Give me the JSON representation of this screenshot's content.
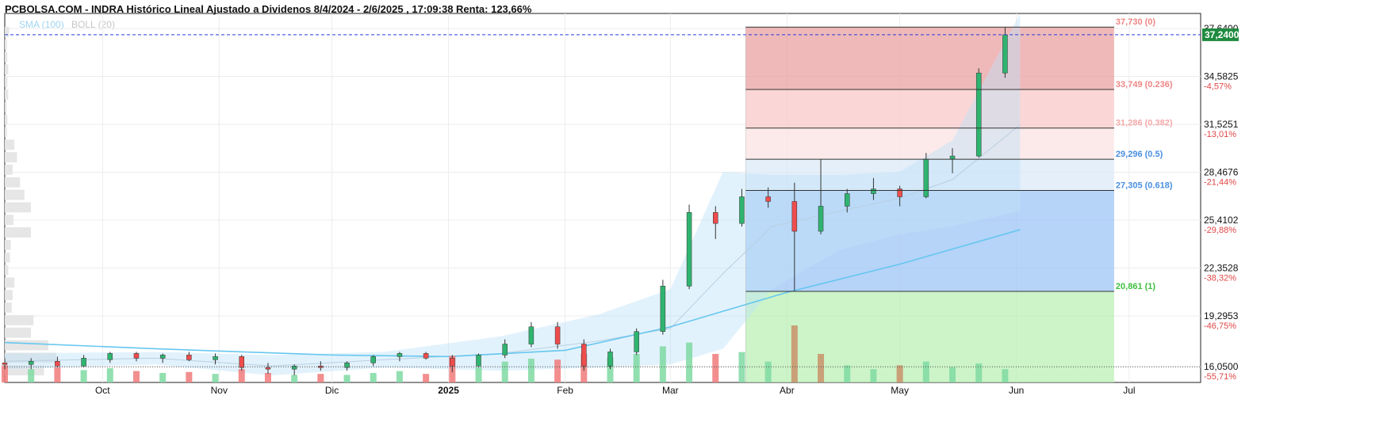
{
  "header": {
    "title": "PCBOLSA.COM - INDRA Histórico Lineal Ajustado a Dividenos 8/4/2024 - 2/6/2025 , 17:09:38 Renta: 123,66%",
    "indicator_sma": "SMA (100)",
    "indicator_boll": "BOLL (20)"
  },
  "colors": {
    "up": "#2fb470",
    "down": "#ef4c4c",
    "vol_up": "#7fd9a2",
    "vol_down": "#f07a7a",
    "vol_brown": "#c9906a",
    "sma": "#66c7ef",
    "bollinger_fill": "#bfe3f8",
    "bollinger_mid": "#b9cfe0",
    "price_line": "#2b3bd9",
    "price_tag": "#1f8a3f",
    "fib_red": "#e9a2a2",
    "fib_pink": "#f8c8c8",
    "fib_light": "#fbe3e3",
    "fib_lightblue": "#dbe9f8",
    "fib_blue": "#9ec4f6",
    "fib_green": "#b6f0b0"
  },
  "chart_data": {
    "type": "candlestick",
    "title": "PCBOLSA.COM - INDRA Histórico Lineal Ajustado a Dividenos 8/4/2024 - 2/6/2025 , 17:09:38 Renta: 123,66%",
    "y_axis": {
      "ticks": [
        {
          "value": 37.64,
          "label": "37,6400",
          "pct": ""
        },
        {
          "value": 34.5825,
          "label": "34,5825",
          "pct": "-4,57%"
        },
        {
          "value": 31.5251,
          "label": "31,5251",
          "pct": "-13,01%"
        },
        {
          "value": 28.4676,
          "label": "28,4676",
          "pct": "-21,44%"
        },
        {
          "value": 25.4102,
          "label": "25,4102",
          "pct": "-29,88%"
        },
        {
          "value": 22.3528,
          "label": "22,3528",
          "pct": "-38,32%"
        },
        {
          "value": 19.2953,
          "label": "19,2953",
          "pct": "-46,75%"
        },
        {
          "value": 16.05,
          "label": "16,0500",
          "pct": "-55,71%"
        }
      ],
      "range": [
        15.05,
        38.6
      ]
    },
    "x_axis": {
      "labels": [
        {
          "label": "Oct",
          "date": "2024-10-01",
          "bold": false
        },
        {
          "label": "Nov",
          "date": "2024-11-01",
          "bold": false
        },
        {
          "label": "Dic",
          "date": "2024-12-01",
          "bold": false
        },
        {
          "label": "2025",
          "date": "2025-01-01",
          "bold": true
        },
        {
          "label": "Feb",
          "date": "2025-02-01",
          "bold": false
        },
        {
          "label": "Mar",
          "date": "2025-03-01",
          "bold": false
        },
        {
          "label": "Abr",
          "date": "2025-04-01",
          "bold": false
        },
        {
          "label": "May",
          "date": "2025-05-01",
          "bold": false
        },
        {
          "label": "Jun",
          "date": "2025-06-01",
          "bold": false
        },
        {
          "label": "Jul",
          "date": "2025-07-01",
          "bold": false
        }
      ],
      "range": [
        "2024-09-05",
        "2025-07-20"
      ]
    },
    "current_price": {
      "value": 37.24,
      "label": "37,2400"
    },
    "reference_line": {
      "value": 16.05
    },
    "fibonacci": {
      "start_date": "2025-03-21",
      "end_date": "2025-06-27",
      "levels": [
        {
          "value": 37.73,
          "label": "37,730 (0)",
          "color": "#f08585"
        },
        {
          "value": 33.749,
          "label": "33,749 (0.236)",
          "color": "#f08585"
        },
        {
          "value": 31.286,
          "label": "31,286 (0.382)",
          "color": "#f4a9a9"
        },
        {
          "value": 29.296,
          "label": "29,296 (0.5)",
          "color": "#4a8fe0"
        },
        {
          "value": 27.305,
          "label": "27,305 (0.618)",
          "color": "#4a8fe0"
        },
        {
          "value": 20.861,
          "label": "20,861 (1)",
          "color": "#3fbf3f"
        }
      ]
    },
    "candles": [
      {
        "d": "2024-09-05",
        "o": 16.3,
        "h": 16.6,
        "l": 15.9,
        "c": 16.2
      },
      {
        "d": "2024-09-12",
        "o": 16.2,
        "h": 16.6,
        "l": 15.9,
        "c": 16.4
      },
      {
        "d": "2024-09-19",
        "o": 16.4,
        "h": 16.7,
        "l": 16.0,
        "c": 16.1
      },
      {
        "d": "2024-09-26",
        "o": 16.1,
        "h": 16.8,
        "l": 16.0,
        "c": 16.6
      },
      {
        "d": "2024-10-03",
        "o": 16.5,
        "h": 17.0,
        "l": 16.3,
        "c": 16.9
      },
      {
        "d": "2024-10-10",
        "o": 16.9,
        "h": 17.0,
        "l": 16.4,
        "c": 16.6
      },
      {
        "d": "2024-10-17",
        "o": 16.6,
        "h": 16.9,
        "l": 16.3,
        "c": 16.8
      },
      {
        "d": "2024-10-24",
        "o": 16.8,
        "h": 17.0,
        "l": 16.4,
        "c": 16.5
      },
      {
        "d": "2024-10-31",
        "o": 16.5,
        "h": 16.9,
        "l": 16.2,
        "c": 16.7
      },
      {
        "d": "2024-11-07",
        "o": 16.7,
        "h": 16.8,
        "l": 15.8,
        "c": 16.0
      },
      {
        "d": "2024-11-14",
        "o": 16.0,
        "h": 16.3,
        "l": 15.6,
        "c": 15.9
      },
      {
        "d": "2024-11-21",
        "o": 15.9,
        "h": 16.2,
        "l": 15.5,
        "c": 16.1
      },
      {
        "d": "2024-11-28",
        "o": 16.1,
        "h": 16.4,
        "l": 15.8,
        "c": 16.0
      },
      {
        "d": "2024-12-05",
        "o": 16.0,
        "h": 16.4,
        "l": 15.8,
        "c": 16.3
      },
      {
        "d": "2024-12-12",
        "o": 16.3,
        "h": 16.8,
        "l": 16.1,
        "c": 16.7
      },
      {
        "d": "2024-12-19",
        "o": 16.7,
        "h": 17.0,
        "l": 16.4,
        "c": 16.9
      },
      {
        "d": "2024-12-26",
        "o": 16.9,
        "h": 17.0,
        "l": 16.5,
        "c": 16.6
      },
      {
        "d": "2025-01-02",
        "o": 16.6,
        "h": 16.8,
        "l": 15.7,
        "c": 16.1
      },
      {
        "d": "2025-01-09",
        "o": 16.1,
        "h": 16.9,
        "l": 16.0,
        "c": 16.8
      },
      {
        "d": "2025-01-16",
        "o": 16.8,
        "h": 17.8,
        "l": 16.6,
        "c": 17.5
      },
      {
        "d": "2025-01-23",
        "o": 17.5,
        "h": 18.9,
        "l": 17.3,
        "c": 18.6
      },
      {
        "d": "2025-01-30",
        "o": 18.6,
        "h": 18.9,
        "l": 17.2,
        "c": 17.5
      },
      {
        "d": "2025-02-06",
        "o": 17.5,
        "h": 17.8,
        "l": 15.8,
        "c": 16.1
      },
      {
        "d": "2025-02-13",
        "o": 16.1,
        "h": 17.2,
        "l": 15.9,
        "c": 17.0
      },
      {
        "d": "2025-02-20",
        "o": 17.0,
        "h": 18.5,
        "l": 16.8,
        "c": 18.3
      },
      {
        "d": "2025-02-27",
        "o": 18.3,
        "h": 21.6,
        "l": 18.1,
        "c": 21.2
      },
      {
        "d": "2025-03-06",
        "o": 21.2,
        "h": 26.4,
        "l": 21.0,
        "c": 25.9
      },
      {
        "d": "2025-03-13",
        "o": 25.9,
        "h": 26.3,
        "l": 24.2,
        "c": 25.2
      },
      {
        "d": "2025-03-20",
        "o": 25.2,
        "h": 27.4,
        "l": 25.0,
        "c": 26.9
      },
      {
        "d": "2025-03-27",
        "o": 26.9,
        "h": 27.5,
        "l": 26.2,
        "c": 26.6
      },
      {
        "d": "2025-04-03",
        "o": 26.6,
        "h": 27.8,
        "l": 20.9,
        "c": 24.7
      },
      {
        "d": "2025-04-10",
        "o": 24.7,
        "h": 29.3,
        "l": 24.5,
        "c": 26.3
      },
      {
        "d": "2025-04-17",
        "o": 26.3,
        "h": 27.4,
        "l": 25.9,
        "c": 27.1
      },
      {
        "d": "2025-04-24",
        "o": 27.1,
        "h": 28.1,
        "l": 26.7,
        "c": 27.4
      },
      {
        "d": "2025-05-01",
        "o": 27.4,
        "h": 27.6,
        "l": 26.3,
        "c": 26.9
      },
      {
        "d": "2025-05-08",
        "o": 26.9,
        "h": 29.7,
        "l": 26.8,
        "c": 29.3
      },
      {
        "d": "2025-05-15",
        "o": 29.3,
        "h": 30.0,
        "l": 28.4,
        "c": 29.5
      },
      {
        "d": "2025-05-22",
        "o": 29.5,
        "h": 35.1,
        "l": 29.4,
        "c": 34.8
      },
      {
        "d": "2025-05-29",
        "o": 34.8,
        "h": 37.7,
        "l": 34.5,
        "c": 37.24
      }
    ],
    "volume_series": [
      {
        "d": "2024-09-05",
        "v": 18,
        "t": "down"
      },
      {
        "d": "2024-09-12",
        "v": 14,
        "t": "up"
      },
      {
        "d": "2024-09-19",
        "v": 16,
        "t": "down"
      },
      {
        "d": "2024-09-26",
        "v": 13,
        "t": "up"
      },
      {
        "d": "2024-10-03",
        "v": 15,
        "t": "up"
      },
      {
        "d": "2024-10-10",
        "v": 12,
        "t": "down"
      },
      {
        "d": "2024-10-17",
        "v": 10,
        "t": "up"
      },
      {
        "d": "2024-10-24",
        "v": 11,
        "t": "down"
      },
      {
        "d": "2024-10-31",
        "v": 9,
        "t": "up"
      },
      {
        "d": "2024-11-07",
        "v": 14,
        "t": "down"
      },
      {
        "d": "2024-11-14",
        "v": 10,
        "t": "down"
      },
      {
        "d": "2024-11-21",
        "v": 8,
        "t": "up"
      },
      {
        "d": "2024-11-28",
        "v": 9,
        "t": "down"
      },
      {
        "d": "2024-12-05",
        "v": 8,
        "t": "up"
      },
      {
        "d": "2024-12-12",
        "v": 10,
        "t": "up"
      },
      {
        "d": "2024-12-19",
        "v": 12,
        "t": "up"
      },
      {
        "d": "2024-12-26",
        "v": 9,
        "t": "down"
      },
      {
        "d": "2025-01-02",
        "v": 28,
        "t": "down"
      },
      {
        "d": "2025-01-09",
        "v": 16,
        "t": "up"
      },
      {
        "d": "2025-01-16",
        "v": 22,
        "t": "up"
      },
      {
        "d": "2025-01-23",
        "v": 25,
        "t": "up"
      },
      {
        "d": "2025-01-30",
        "v": 24,
        "t": "down"
      },
      {
        "d": "2025-02-06",
        "v": 30,
        "t": "down"
      },
      {
        "d": "2025-02-13",
        "v": 26,
        "t": "up"
      },
      {
        "d": "2025-02-20",
        "v": 30,
        "t": "up"
      },
      {
        "d": "2025-02-27",
        "v": 38,
        "t": "up"
      },
      {
        "d": "2025-03-06",
        "v": 42,
        "t": "up"
      },
      {
        "d": "2025-03-13",
        "v": 30,
        "t": "down"
      },
      {
        "d": "2025-03-20",
        "v": 32,
        "t": "up"
      },
      {
        "d": "2025-03-27",
        "v": 22,
        "t": "up"
      },
      {
        "d": "2025-04-03",
        "v": 60,
        "t": "brown"
      },
      {
        "d": "2025-04-10",
        "v": 30,
        "t": "brown"
      },
      {
        "d": "2025-04-17",
        "v": 18,
        "t": "up"
      },
      {
        "d": "2025-04-24",
        "v": 14,
        "t": "up"
      },
      {
        "d": "2025-05-01",
        "v": 18,
        "t": "brown"
      },
      {
        "d": "2025-05-08",
        "v": 22,
        "t": "up"
      },
      {
        "d": "2025-05-15",
        "v": 16,
        "t": "up"
      },
      {
        "d": "2025-05-22",
        "v": 20,
        "t": "up"
      },
      {
        "d": "2025-05-29",
        "v": 14,
        "t": "up"
      }
    ],
    "sma": [
      {
        "d": "2024-09-05",
        "v": 17.6
      },
      {
        "d": "2024-10-15",
        "v": 17.2
      },
      {
        "d": "2024-12-01",
        "v": 16.8
      },
      {
        "d": "2025-01-01",
        "v": 16.7
      },
      {
        "d": "2025-02-01",
        "v": 17.1
      },
      {
        "d": "2025-03-01",
        "v": 18.6
      },
      {
        "d": "2025-04-01",
        "v": 20.8
      },
      {
        "d": "2025-05-01",
        "v": 22.6
      },
      {
        "d": "2025-06-02",
        "v": 24.8
      }
    ],
    "bollinger": [
      {
        "d": "2024-09-05",
        "u": 16.9,
        "m": 16.4,
        "l": 15.9
      },
      {
        "d": "2024-10-15",
        "u": 17.0,
        "m": 16.6,
        "l": 16.2
      },
      {
        "d": "2024-11-15",
        "u": 16.8,
        "m": 16.1,
        "l": 15.5
      },
      {
        "d": "2024-12-15",
        "u": 17.0,
        "m": 16.5,
        "l": 16.0
      },
      {
        "d": "2025-01-15",
        "u": 18.0,
        "m": 16.9,
        "l": 15.8
      },
      {
        "d": "2025-02-10",
        "u": 19.4,
        "m": 17.7,
        "l": 16.0
      },
      {
        "d": "2025-03-01",
        "u": 21.0,
        "m": 18.5,
        "l": 16.2
      },
      {
        "d": "2025-03-15",
        "u": 28.5,
        "m": 22.0,
        "l": 17.2
      },
      {
        "d": "2025-03-28",
        "u": 28.3,
        "m": 25.0,
        "l": 21.0
      },
      {
        "d": "2025-04-15",
        "u": 28.3,
        "m": 26.0,
        "l": 23.5
      },
      {
        "d": "2025-05-01",
        "u": 28.5,
        "m": 26.8,
        "l": 24.5
      },
      {
        "d": "2025-05-15",
        "u": 30.5,
        "m": 28.0,
        "l": 25.0
      },
      {
        "d": "2025-06-02",
        "u": 38.6,
        "m": 31.5,
        "l": 26.0
      }
    ],
    "volume_profile": [
      {
        "price": 37.4,
        "w": 10
      },
      {
        "price": 36.6,
        "w": 5
      },
      {
        "price": 35.8,
        "w": 6
      },
      {
        "price": 35.0,
        "w": 8
      },
      {
        "price": 34.2,
        "w": 6
      },
      {
        "price": 33.4,
        "w": 8
      },
      {
        "price": 32.6,
        "w": 4
      },
      {
        "price": 31.8,
        "w": 6
      },
      {
        "price": 31.0,
        "w": 5
      },
      {
        "price": 30.2,
        "w": 22
      },
      {
        "price": 29.4,
        "w": 28
      },
      {
        "price": 28.6,
        "w": 18
      },
      {
        "price": 27.8,
        "w": 35
      },
      {
        "price": 27.0,
        "w": 45
      },
      {
        "price": 26.2,
        "w": 60
      },
      {
        "price": 25.4,
        "w": 20
      },
      {
        "price": 24.6,
        "w": 60
      },
      {
        "price": 23.8,
        "w": 14
      },
      {
        "price": 23.0,
        "w": 12
      },
      {
        "price": 22.2,
        "w": 8
      },
      {
        "price": 21.4,
        "w": 22
      },
      {
        "price": 20.6,
        "w": 18
      },
      {
        "price": 19.8,
        "w": 16
      },
      {
        "price": 19.0,
        "w": 66
      },
      {
        "price": 18.2,
        "w": 60
      },
      {
        "price": 17.4,
        "w": 100
      },
      {
        "price": 16.6,
        "w": 118
      },
      {
        "price": 15.8,
        "w": 90
      }
    ]
  }
}
